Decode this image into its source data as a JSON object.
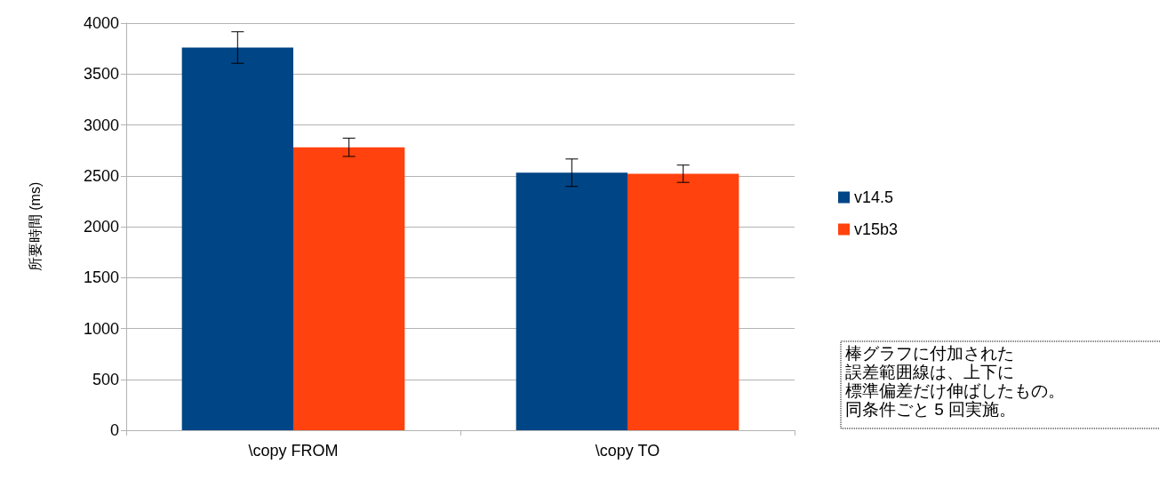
{
  "chart_data": {
    "type": "bar",
    "ylabel": "所要時間 (ms)",
    "categories": [
      "\\copy FROM",
      "\\copy TO"
    ],
    "series": [
      {
        "name": "v14.5",
        "color": "#004586",
        "values": [
          3760,
          2530
        ],
        "errors": [
          155,
          135
        ]
      },
      {
        "name": "v15b3",
        "color": "#ff420e",
        "values": [
          2780,
          2520
        ],
        "errors": [
          90,
          85
        ]
      }
    ],
    "ylim": [
      0,
      4000
    ],
    "yticks": [
      0,
      500,
      1000,
      1500,
      2000,
      2500,
      3000,
      3500,
      4000
    ],
    "grid": "y",
    "legend": "right",
    "annotations": [
      "棒グラフに付加された",
      "誤差範囲線は、上下に",
      "標準偏差だけ伸ばしたもの。",
      "同条件ごと 5 回実施。"
    ]
  }
}
